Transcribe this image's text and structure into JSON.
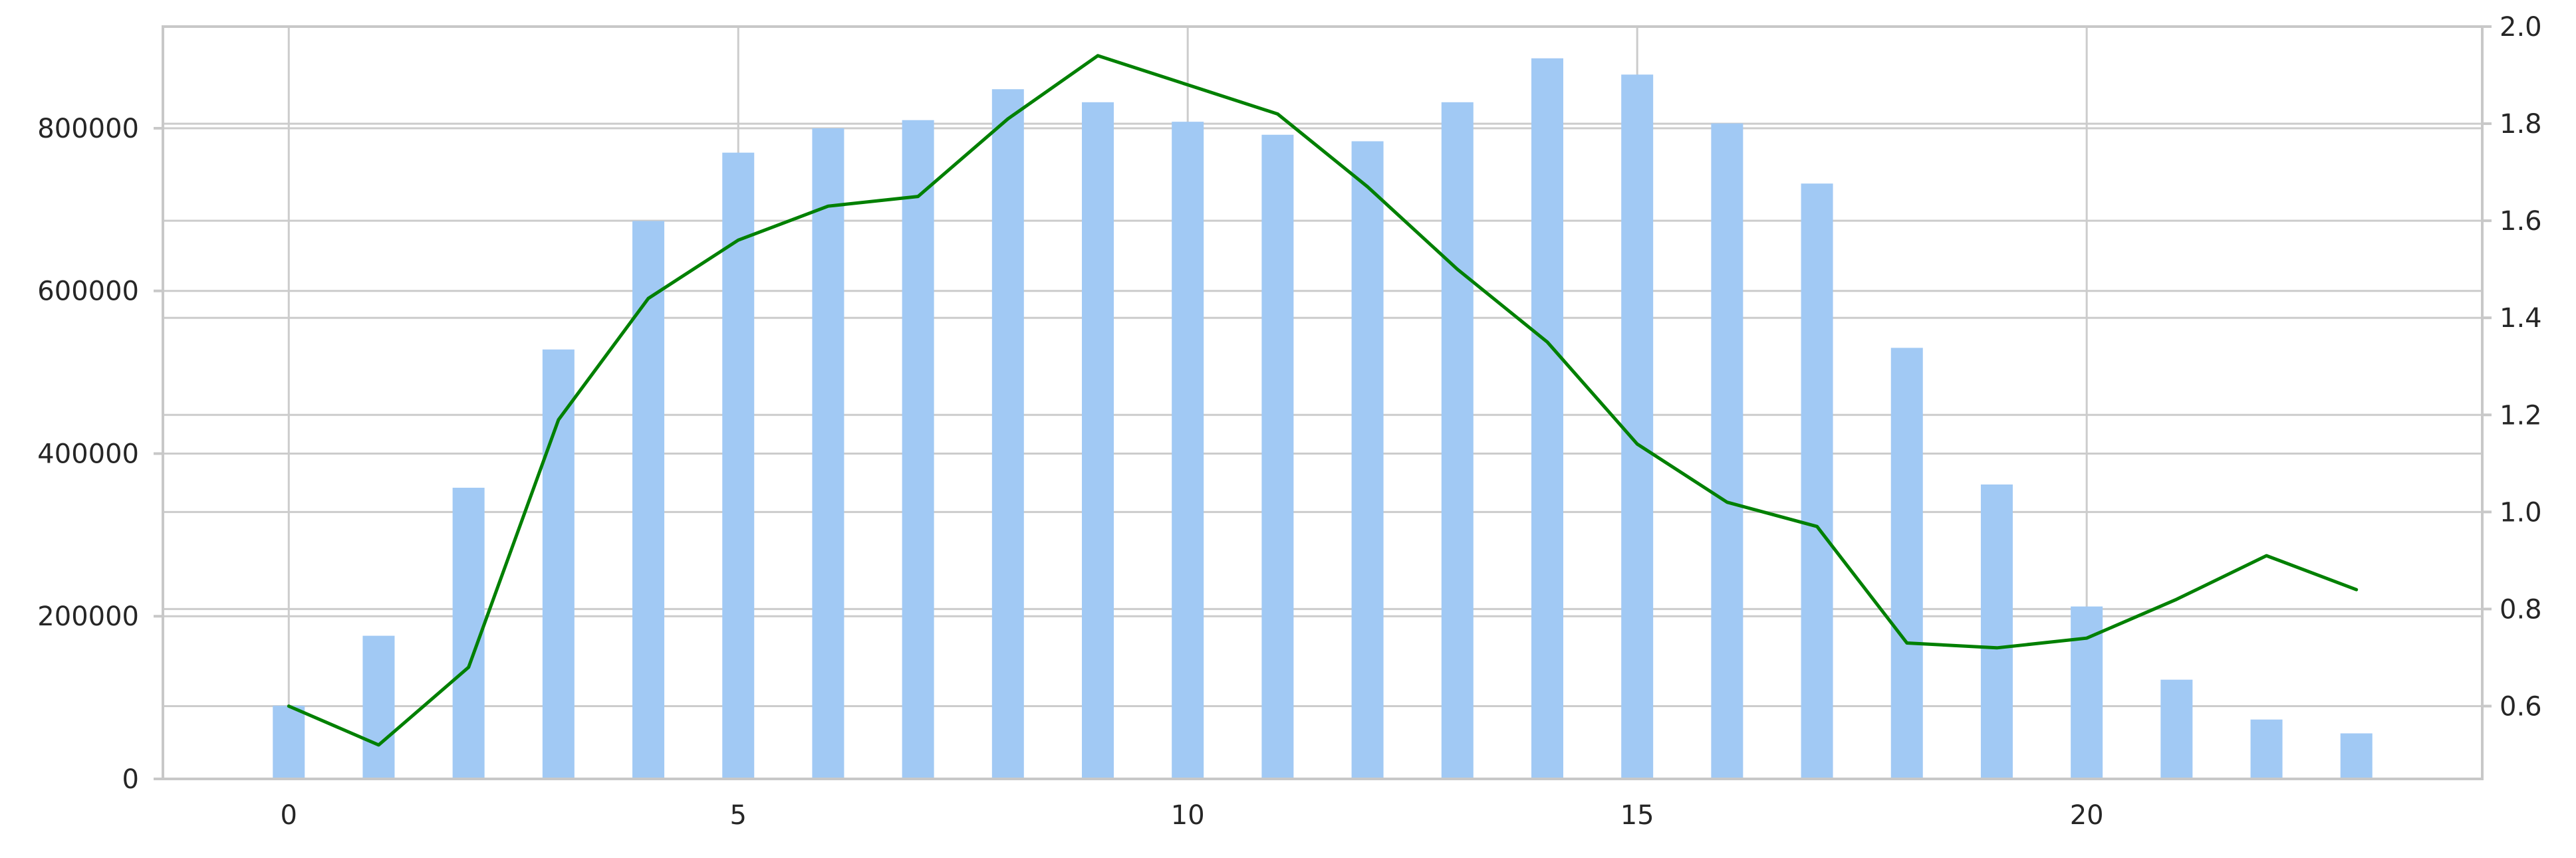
{
  "chart_data": {
    "type": "bar+line",
    "grid": true,
    "x": [
      0,
      1,
      2,
      3,
      4,
      5,
      6,
      7,
      8,
      9,
      10,
      11,
      12,
      13,
      14,
      15,
      16,
      17,
      18,
      19,
      20,
      21,
      22,
      23
    ],
    "xlim": [
      -1.4,
      24.4
    ],
    "x_ticks": [
      0,
      5,
      10,
      15,
      20
    ],
    "bar_series": {
      "axis": "left",
      "color": "#a1c9f4",
      "values": [
        90000,
        176000,
        358000,
        528000,
        686000,
        770000,
        800000,
        810000,
        848000,
        832000,
        808000,
        792000,
        784000,
        832000,
        886000,
        866000,
        806000,
        732000,
        530000,
        362000,
        212000,
        122000,
        73000,
        56000
      ]
    },
    "line_series": {
      "axis": "right",
      "color": "#008000",
      "values": [
        0.6,
        0.52,
        0.68,
        1.19,
        1.44,
        1.56,
        1.63,
        1.65,
        1.81,
        1.94,
        1.88,
        1.82,
        1.67,
        1.5,
        1.35,
        1.14,
        1.02,
        0.97,
        0.73,
        0.72,
        0.74,
        0.82,
        0.91,
        0.84
      ]
    },
    "y_left": {
      "ylim": [
        0,
        925000
      ],
      "ticks": [
        0,
        200000,
        400000,
        600000,
        800000
      ],
      "tick_labels": [
        "0",
        "200000",
        "400000",
        "600000",
        "800000"
      ]
    },
    "y_right": {
      "ylim": [
        0.45,
        2.0
      ],
      "ticks": [
        0.6,
        0.8,
        1.0,
        1.2,
        1.4,
        1.6,
        1.8,
        2.0
      ],
      "tick_labels": [
        "0.6",
        "0.8",
        "1.0",
        "1.2",
        "1.4",
        "1.6",
        "1.8",
        "2.0"
      ]
    },
    "xlabel": "",
    "ylabel": "",
    "title": ""
  }
}
